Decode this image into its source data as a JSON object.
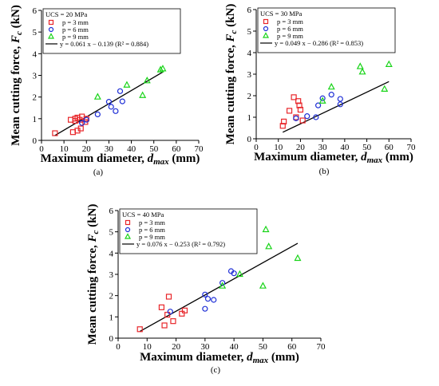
{
  "figure": {
    "panels": [
      {
        "letter": "(a)",
        "legend_title": "UCS = 20 MPa",
        "fit_label": "y = 0.061 x − 0.139 (R² = 0.884)"
      },
      {
        "letter": "(b)",
        "legend_title": "UCS = 30 MPa",
        "fit_label": "y = 0.049 x − 0.286 (R² = 0.853)"
      },
      {
        "letter": "(c)",
        "legend_title": "UCS = 40 MPa",
        "fit_label": "y = 0.076 x − 0.253 (R² = 0.792)"
      }
    ]
  },
  "colors": {
    "p3": "#e8262a",
    "p6": "#1f2fd6",
    "p9": "#18d418",
    "fit": "#000000",
    "axis": "#000000"
  },
  "chart_data": [
    {
      "type": "scatter",
      "panel": "(a)",
      "title": "UCS = 20 MPa",
      "xlabel": "Maximum diameter, d_max (mm)",
      "ylabel": "Mean cutting force, F_c (kN)",
      "xlim": [
        0,
        70
      ],
      "ylim": [
        0,
        6
      ],
      "xticks": [
        0,
        10,
        20,
        30,
        40,
        50,
        60,
        70
      ],
      "yticks": [
        0,
        1,
        2,
        3,
        4,
        5,
        6
      ],
      "legend_position": "top-left",
      "series": [
        {
          "name": "p = 3 mm",
          "marker": "square",
          "color": "#e8262a",
          "points": [
            [
              6,
              0.33
            ],
            [
              13,
              0.95
            ],
            [
              14,
              0.38
            ],
            [
              15,
              0.9
            ],
            [
              15,
              1.0
            ],
            [
              16,
              0.45
            ],
            [
              16,
              1.05
            ],
            [
              17,
              0.95
            ],
            [
              17.5,
              0.55
            ],
            [
              18,
              1.1
            ],
            [
              19.5,
              0.85
            ],
            [
              20,
              1.0
            ]
          ]
        },
        {
          "name": "p = 6 mm",
          "marker": "circle",
          "color": "#1f2fd6",
          "points": [
            [
              18,
              0.8
            ],
            [
              20,
              0.95
            ],
            [
              25,
              1.2
            ],
            [
              30,
              1.78
            ],
            [
              31,
              1.55
            ],
            [
              33,
              1.35
            ],
            [
              35,
              2.27
            ],
            [
              36,
              1.8
            ]
          ]
        },
        {
          "name": "p = 9 mm",
          "marker": "triangle",
          "color": "#18d418",
          "points": [
            [
              25,
              2.0
            ],
            [
              38,
              2.55
            ],
            [
              45,
              2.07
            ],
            [
              47,
              2.75
            ],
            [
              53,
              3.25
            ],
            [
              54,
              3.3
            ]
          ]
        }
      ],
      "fit": {
        "slope": 0.061,
        "intercept": -0.139,
        "x_range": [
          6,
          54
        ]
      }
    },
    {
      "type": "scatter",
      "panel": "(b)",
      "title": "UCS = 30 MPa",
      "xlabel": "Maximum diameter, d_max (mm)",
      "ylabel": "Mean cutting force, F_c (kN)",
      "xlim": [
        0,
        70
      ],
      "ylim": [
        0,
        6
      ],
      "xticks": [
        0,
        10,
        20,
        30,
        40,
        50,
        60,
        70
      ],
      "yticks": [
        0,
        1,
        2,
        3,
        4,
        5,
        6
      ],
      "legend_position": "top-left",
      "series": [
        {
          "name": "p = 3 mm",
          "marker": "square",
          "color": "#e8262a",
          "points": [
            [
              12,
              0.6
            ],
            [
              12.5,
              0.8
            ],
            [
              15,
              1.3
            ],
            [
              17,
              1.93
            ],
            [
              18,
              1.0
            ],
            [
              19,
              1.75
            ],
            [
              19.5,
              1.55
            ],
            [
              20,
              1.35
            ],
            [
              21,
              0.85
            ]
          ]
        },
        {
          "name": "p = 6 mm",
          "marker": "circle",
          "color": "#1f2fd6",
          "points": [
            [
              18,
              0.95
            ],
            [
              23,
              1.05
            ],
            [
              27,
              1.0
            ],
            [
              28,
              1.55
            ],
            [
              30,
              1.88
            ],
            [
              34,
              2.05
            ],
            [
              38,
              1.85
            ],
            [
              38,
              1.6
            ]
          ]
        },
        {
          "name": "p = 9 mm",
          "marker": "triangle",
          "color": "#18d418",
          "points": [
            [
              30,
              1.75
            ],
            [
              34,
              2.4
            ],
            [
              47,
              3.35
            ],
            [
              48,
              3.1
            ],
            [
              58,
              2.3
            ],
            [
              60,
              3.45
            ]
          ]
        }
      ],
      "fit": {
        "slope": 0.049,
        "intercept": -0.286,
        "x_range": [
          12,
          60
        ]
      }
    },
    {
      "type": "scatter",
      "panel": "(c)",
      "title": "UCS = 40 MPa",
      "xlabel": "Maximum diameter, d_max (mm)",
      "ylabel": "Mean cutting force, F_c (kN)",
      "xlim": [
        0,
        70
      ],
      "ylim": [
        0,
        6
      ],
      "xticks": [
        0,
        10,
        20,
        30,
        40,
        50,
        60,
        70
      ],
      "yticks": [
        0,
        1,
        2,
        3,
        4,
        5,
        6
      ],
      "legend_position": "top-left",
      "series": [
        {
          "name": "p = 3 mm",
          "marker": "square",
          "color": "#e8262a",
          "points": [
            [
              7.5,
              0.42
            ],
            [
              15,
              1.45
            ],
            [
              16,
              0.6
            ],
            [
              17,
              1.1
            ],
            [
              17.5,
              1.95
            ],
            [
              19,
              0.8
            ],
            [
              22,
              1.15
            ],
            [
              23,
              1.3
            ]
          ]
        },
        {
          "name": "p = 6 mm",
          "marker": "circle",
          "color": "#1f2fd6",
          "points": [
            [
              18,
              1.25
            ],
            [
              30,
              2.05
            ],
            [
              30,
              1.38
            ],
            [
              31,
              1.85
            ],
            [
              33,
              1.8
            ],
            [
              36,
              2.6
            ],
            [
              39,
              3.15
            ],
            [
              40,
              3.05
            ]
          ]
        },
        {
          "name": "p = 9 mm",
          "marker": "triangle",
          "color": "#18d418",
          "points": [
            [
              36,
              2.45
            ],
            [
              42,
              3.0
            ],
            [
              50,
              2.45
            ],
            [
              51,
              5.1
            ],
            [
              52,
              4.3
            ],
            [
              62,
              3.75
            ]
          ]
        }
      ],
      "fit": {
        "slope": 0.076,
        "intercept": -0.253,
        "x_range": [
          7.5,
          62
        ]
      }
    }
  ]
}
